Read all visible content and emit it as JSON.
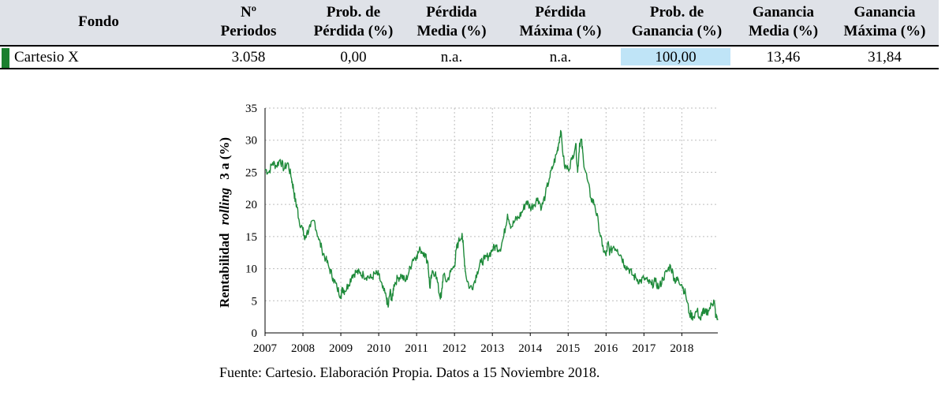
{
  "table": {
    "headers": [
      {
        "l1": "Fondo",
        "l2": ""
      },
      {
        "l1": "Nº",
        "l2": "Periodos"
      },
      {
        "l1": "Prob. de",
        "l2": "Pérdida (%)"
      },
      {
        "l1": "Pérdida",
        "l2": "Media (%)"
      },
      {
        "l1": "Pérdida",
        "l2": "Máxima (%)"
      },
      {
        "l1": "Prob. de",
        "l2": "Ganancia (%)"
      },
      {
        "l1": "Ganancia",
        "l2": "Media (%)"
      },
      {
        "l1": "Ganancia",
        "l2": "Máxima (%)"
      }
    ],
    "row": [
      "Cartesio X",
      "3.058",
      "0,00",
      "n.a.",
      "n.a.",
      "100,00",
      "13,46",
      "31,84"
    ],
    "accent_color": "#1a7f2e",
    "highlight_color": "#bfe4f7",
    "header_bg": "#dfe2e8"
  },
  "chart_data": {
    "type": "line",
    "ylabel_part1": "Rentabilidad",
    "ylabel_italic": "rolling",
    "ylabel_part2": "3 a (%)",
    "ylim": [
      0,
      35
    ],
    "yticks": [
      "0",
      "5",
      "10",
      "15",
      "20",
      "25",
      "30",
      "35"
    ],
    "xlim": [
      2007.0,
      2018.95
    ],
    "xticks": [
      "2007",
      "2008",
      "2009",
      "2010",
      "2011",
      "2012",
      "2013",
      "2014",
      "2015",
      "2016",
      "2017",
      "2018"
    ],
    "grid": true,
    "line_color": "#1e8a3a",
    "series": [
      {
        "name": "Rentabilidad rolling 3 a (%) - Cartesio X",
        "x": [
          2007.0,
          2007.1,
          2007.2,
          2007.3,
          2007.4,
          2007.5,
          2007.6,
          2007.7,
          2007.75,
          2007.8,
          2007.85,
          2007.9,
          2008.0,
          2008.05,
          2008.1,
          2008.2,
          2008.3,
          2008.4,
          2008.5,
          2008.6,
          2008.7,
          2008.8,
          2008.9,
          2009.0,
          2009.05,
          2009.1,
          2009.2,
          2009.3,
          2009.4,
          2009.5,
          2009.6,
          2009.7,
          2009.8,
          2009.9,
          2010.0,
          2010.1,
          2010.2,
          2010.25,
          2010.3,
          2010.35,
          2010.4,
          2010.5,
          2010.6,
          2010.7,
          2010.8,
          2010.9,
          2011.0,
          2011.1,
          2011.2,
          2011.3,
          2011.35,
          2011.4,
          2011.5,
          2011.6,
          2011.65,
          2011.7,
          2011.8,
          2011.9,
          2012.0,
          2012.05,
          2012.1,
          2012.2,
          2012.25,
          2012.3,
          2012.4,
          2012.5,
          2012.6,
          2012.7,
          2012.8,
          2012.9,
          2013.0,
          2013.1,
          2013.2,
          2013.3,
          2013.4,
          2013.5,
          2013.6,
          2013.7,
          2013.8,
          2013.9,
          2014.0,
          2014.1,
          2014.2,
          2014.3,
          2014.4,
          2014.5,
          2014.6,
          2014.7,
          2014.75,
          2014.8,
          2014.9,
          2015.0,
          2015.1,
          2015.2,
          2015.25,
          2015.3,
          2015.35,
          2015.4,
          2015.5,
          2015.6,
          2015.7,
          2015.8,
          2015.9,
          2016.0,
          2016.05,
          2016.1,
          2016.2,
          2016.3,
          2016.4,
          2016.5,
          2016.6,
          2016.7,
          2016.8,
          2016.9,
          2017.0,
          2017.1,
          2017.2,
          2017.3,
          2017.4,
          2017.5,
          2017.6,
          2017.7,
          2017.8,
          2017.85,
          2017.9,
          2018.0,
          2018.1,
          2018.2,
          2018.3,
          2018.4,
          2018.5,
          2018.55,
          2018.6,
          2018.7,
          2018.8,
          2018.85,
          2018.9,
          2018.95
        ],
        "y": [
          25.5,
          25.0,
          26.5,
          26.0,
          27.0,
          25.5,
          26.5,
          24.0,
          22.5,
          20.5,
          19.5,
          17.5,
          16.0,
          14.5,
          15.5,
          16.5,
          17.5,
          15.0,
          13.0,
          11.5,
          10.0,
          8.5,
          7.0,
          5.8,
          7.0,
          6.5,
          7.5,
          9.0,
          9.5,
          9.3,
          9.0,
          8.8,
          8.5,
          9.2,
          9.0,
          7.0,
          5.5,
          4.0,
          6.5,
          5.0,
          7.5,
          8.5,
          9.0,
          8.0,
          9.5,
          11.5,
          12.0,
          13.0,
          12.5,
          11.0,
          7.0,
          9.0,
          9.5,
          6.0,
          5.5,
          9.0,
          8.0,
          9.5,
          10.5,
          13.0,
          14.0,
          15.5,
          12.0,
          9.0,
          7.0,
          7.5,
          9.5,
          11.0,
          11.5,
          12.0,
          13.0,
          13.5,
          13.0,
          15.0,
          18.5,
          16.5,
          17.5,
          18.0,
          19.0,
          20.5,
          19.5,
          20.0,
          21.0,
          19.5,
          21.5,
          24.0,
          26.0,
          28.0,
          29.5,
          31.5,
          26.0,
          25.5,
          27.0,
          29.5,
          25.0,
          29.5,
          30.0,
          27.0,
          24.0,
          21.0,
          20.0,
          17.0,
          13.5,
          12.0,
          14.0,
          12.5,
          13.5,
          13.0,
          12.0,
          10.5,
          10.0,
          9.0,
          8.5,
          8.0,
          8.5,
          8.0,
          7.5,
          8.0,
          7.0,
          8.5,
          9.5,
          10.5,
          8.5,
          8.0,
          8.5,
          7.5,
          6.0,
          3.0,
          2.5,
          3.5,
          2.0,
          3.5,
          3.0,
          3.5,
          4.5,
          5.0,
          2.5,
          2.0
        ]
      }
    ]
  },
  "source_text": "Fuente: Cartesio. Elaboración Propia. Datos a 15 Noviembre 2018."
}
